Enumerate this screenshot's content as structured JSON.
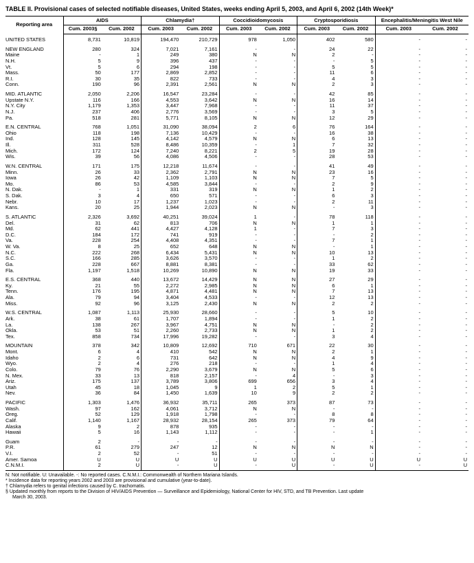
{
  "title": "TABLE II. Provisional cases of selected notifiable diseases, United States, weeks ending April 5, 2003, and April 6, 2002 (14th Week)*",
  "header": {
    "area": "Reporting area",
    "groups": [
      "AIDS",
      "Chlamydia†",
      "Coccidioidomycosis",
      "Cryptosporidiosis",
      "Encephalitis/Meningitis West Nile"
    ],
    "sub": [
      "Cum. 2003§",
      "Cum. 2002",
      "Cum. 2003",
      "Cum. 2002",
      "Cum. 2003",
      "Cum. 2002",
      "Cum. 2003",
      "Cum. 2002",
      "Cum. 2003",
      "Cum. 2002"
    ]
  },
  "rows": [
    {
      "g": 1,
      "a": "UNITED STATES",
      "v": [
        "8,731",
        "10,819",
        "194,470",
        "210,729",
        "978",
        "1,050",
        "402",
        "580",
        "-",
        "-"
      ]
    },
    {
      "g": 1,
      "a": "NEW ENGLAND",
      "v": [
        "280",
        "324",
        "7,021",
        "7,161",
        "-",
        "-",
        "24",
        "22",
        "-",
        "-"
      ]
    },
    {
      "a": "Maine",
      "v": [
        "-",
        "1",
        "249",
        "380",
        "N",
        "N",
        "2",
        "-",
        "-",
        "-"
      ]
    },
    {
      "a": "N.H.",
      "v": [
        "5",
        "9",
        "396",
        "437",
        "-",
        "-",
        "-",
        "5",
        "-",
        "-"
      ]
    },
    {
      "a": "Vt.",
      "v": [
        "5",
        "6",
        "294",
        "198",
        "-",
        "-",
        "5",
        "5",
        "-",
        "-"
      ]
    },
    {
      "a": "Mass.",
      "v": [
        "50",
        "177",
        "2,869",
        "2,852",
        "-",
        "-",
        "11",
        "6",
        "-",
        "-"
      ]
    },
    {
      "a": "R.I.",
      "v": [
        "30",
        "35",
        "822",
        "733",
        "-",
        "-",
        "4",
        "3",
        "-",
        "-"
      ]
    },
    {
      "a": "Conn.",
      "v": [
        "190",
        "96",
        "2,391",
        "2,561",
        "N",
        "N",
        "2",
        "3",
        "-",
        "-"
      ]
    },
    {
      "g": 1,
      "a": "MID. ATLANTIC",
      "v": [
        "2,050",
        "2,206",
        "16,547",
        "23,284",
        "-",
        "-",
        "42",
        "85",
        "-",
        "-"
      ]
    },
    {
      "a": "Upstate N.Y.",
      "v": [
        "116",
        "166",
        "4,553",
        "3,642",
        "N",
        "N",
        "16",
        "14",
        "-",
        "-"
      ]
    },
    {
      "a": "N.Y. City",
      "v": [
        "1,179",
        "1,353",
        "3,447",
        "7,968",
        "-",
        "-",
        "11",
        "37",
        "-",
        "-"
      ]
    },
    {
      "a": "N.J.",
      "v": [
        "237",
        "406",
        "2,776",
        "3,569",
        "-",
        "-",
        "3",
        "5",
        "-",
        "-"
      ]
    },
    {
      "a": "Pa.",
      "v": [
        "518",
        "281",
        "5,771",
        "8,105",
        "N",
        "N",
        "12",
        "29",
        "-",
        "-"
      ]
    },
    {
      "g": 1,
      "a": "E.N. CENTRAL",
      "v": [
        "768",
        "1,051",
        "31,090",
        "38,094",
        "2",
        "6",
        "76",
        "164",
        "-",
        "-"
      ]
    },
    {
      "a": "Ohio",
      "v": [
        "118",
        "198",
        "7,136",
        "10,429",
        "-",
        "-",
        "16",
        "38",
        "-",
        "-"
      ]
    },
    {
      "a": "Ind.",
      "v": [
        "128",
        "145",
        "4,142",
        "4,579",
        "N",
        "N",
        "6",
        "13",
        "-",
        "-"
      ]
    },
    {
      "a": "Ill.",
      "v": [
        "311",
        "528",
        "8,486",
        "10,359",
        "-",
        "1",
        "7",
        "32",
        "-",
        "-"
      ]
    },
    {
      "a": "Mich.",
      "v": [
        "172",
        "124",
        "7,240",
        "8,221",
        "2",
        "5",
        "19",
        "28",
        "-",
        "-"
      ]
    },
    {
      "a": "Wis.",
      "v": [
        "39",
        "56",
        "4,086",
        "4,506",
        "-",
        "-",
        "28",
        "53",
        "-",
        "-"
      ]
    },
    {
      "g": 1,
      "a": "W.N. CENTRAL",
      "v": [
        "171",
        "175",
        "12,218",
        "11,674",
        "-",
        "-",
        "41",
        "49",
        "-",
        "-"
      ]
    },
    {
      "a": "Minn.",
      "v": [
        "26",
        "33",
        "2,362",
        "2,791",
        "N",
        "N",
        "23",
        "16",
        "-",
        "-"
      ]
    },
    {
      "a": "Iowa",
      "v": [
        "26",
        "42",
        "1,109",
        "1,103",
        "N",
        "N",
        "7",
        "5",
        "-",
        "-"
      ]
    },
    {
      "a": "Mo.",
      "v": [
        "86",
        "53",
        "4,585",
        "3,844",
        "-",
        "-",
        "2",
        "9",
        "-",
        "-"
      ]
    },
    {
      "a": "N. Dak.",
      "v": [
        "-",
        "1",
        "331",
        "319",
        "N",
        "N",
        "1",
        "2",
        "-",
        "-"
      ]
    },
    {
      "a": "S. Dak.",
      "v": [
        "3",
        "4",
        "650",
        "571",
        "-",
        "-",
        "6",
        "3",
        "-",
        "-"
      ]
    },
    {
      "a": "Nebr.",
      "v": [
        "10",
        "17",
        "1,237",
        "1,023",
        "-",
        "-",
        "2",
        "11",
        "-",
        "-"
      ]
    },
    {
      "a": "Kans.",
      "v": [
        "20",
        "25",
        "1,944",
        "2,023",
        "N",
        "N",
        "-",
        "3",
        "-",
        "-"
      ]
    },
    {
      "g": 1,
      "a": "S. ATLANTIC",
      "v": [
        "2,326",
        "3,692",
        "40,251",
        "39,024",
        "1",
        "-",
        "78",
        "118",
        "-",
        "-"
      ]
    },
    {
      "a": "Del.",
      "v": [
        "31",
        "62",
        "813",
        "706",
        "N",
        "N",
        "1",
        "1",
        "-",
        "-"
      ]
    },
    {
      "a": "Md.",
      "v": [
        "62",
        "441",
        "4,427",
        "4,128",
        "1",
        "-",
        "7",
        "3",
        "-",
        "-"
      ]
    },
    {
      "a": "D.C.",
      "v": [
        "184",
        "172",
        "741",
        "919",
        "-",
        "-",
        "-",
        "2",
        "-",
        "-"
      ]
    },
    {
      "a": "Va.",
      "v": [
        "228",
        "254",
        "4,408",
        "4,351",
        "-",
        "-",
        "7",
        "1",
        "-",
        "-"
      ]
    },
    {
      "a": "W. Va.",
      "v": [
        "8",
        "25",
        "652",
        "648",
        "N",
        "N",
        "-",
        "1",
        "-",
        "-"
      ]
    },
    {
      "a": "N.C.",
      "v": [
        "222",
        "268",
        "6,434",
        "5,431",
        "N",
        "N",
        "10",
        "13",
        "-",
        "-"
      ]
    },
    {
      "a": "S.C.",
      "v": [
        "166",
        "285",
        "3,626",
        "3,570",
        "-",
        "-",
        "1",
        "2",
        "-",
        "-"
      ]
    },
    {
      "a": "Ga.",
      "v": [
        "228",
        "667",
        "8,881",
        "8,381",
        "-",
        "-",
        "33",
        "62",
        "-",
        "-"
      ]
    },
    {
      "a": "Fla.",
      "v": [
        "1,197",
        "1,518",
        "10,269",
        "10,890",
        "N",
        "N",
        "19",
        "33",
        "-",
        "-"
      ]
    },
    {
      "g": 1,
      "a": "E.S. CENTRAL",
      "v": [
        "368",
        "440",
        "13,672",
        "14,429",
        "N",
        "N",
        "27",
        "29",
        "-",
        "-"
      ]
    },
    {
      "a": "Ky.",
      "v": [
        "21",
        "55",
        "2,272",
        "2,985",
        "N",
        "N",
        "6",
        "1",
        "-",
        "-"
      ]
    },
    {
      "a": "Tenn.",
      "v": [
        "176",
        "195",
        "4,871",
        "4,481",
        "N",
        "N",
        "7",
        "13",
        "-",
        "-"
      ]
    },
    {
      "a": "Ala.",
      "v": [
        "79",
        "94",
        "3,404",
        "4,533",
        "-",
        "-",
        "12",
        "13",
        "-",
        "-"
      ]
    },
    {
      "a": "Miss.",
      "v": [
        "92",
        "96",
        "3,125",
        "2,430",
        "N",
        "N",
        "2",
        "2",
        "-",
        "-"
      ]
    },
    {
      "g": 1,
      "a": "W.S. CENTRAL",
      "v": [
        "1,087",
        "1,113",
        "25,930",
        "28,660",
        "-",
        "-",
        "5",
        "10",
        "-",
        "-"
      ]
    },
    {
      "a": "Ark.",
      "v": [
        "38",
        "61",
        "1,707",
        "1,894",
        "-",
        "-",
        "1",
        "2",
        "-",
        "-"
      ]
    },
    {
      "a": "La.",
      "v": [
        "138",
        "267",
        "3,967",
        "4,751",
        "N",
        "N",
        "-",
        "2",
        "-",
        "-"
      ]
    },
    {
      "a": "Okla.",
      "v": [
        "53",
        "51",
        "2,260",
        "2,733",
        "N",
        "N",
        "1",
        "2",
        "-",
        "-"
      ]
    },
    {
      "a": "Tex.",
      "v": [
        "858",
        "734",
        "17,996",
        "19,282",
        "-",
        "-",
        "3",
        "4",
        "-",
        "-"
      ]
    },
    {
      "g": 1,
      "a": "MOUNTAIN",
      "v": [
        "378",
        "342",
        "10,809",
        "12,692",
        "710",
        "671",
        "22",
        "30",
        "-",
        "-"
      ]
    },
    {
      "a": "Mont.",
      "v": [
        "6",
        "4",
        "410",
        "542",
        "N",
        "N",
        "2",
        "1",
        "-",
        "-"
      ]
    },
    {
      "a": "Idaho",
      "v": [
        "2",
        "6",
        "731",
        "642",
        "N",
        "N",
        "4",
        "9",
        "-",
        "-"
      ]
    },
    {
      "a": "Wyo.",
      "v": [
        "2",
        "4",
        "276",
        "218",
        "-",
        "-",
        "1",
        "4",
        "-",
        "-"
      ]
    },
    {
      "a": "Colo.",
      "v": [
        "79",
        "76",
        "2,290",
        "3,679",
        "N",
        "N",
        "5",
        "6",
        "-",
        "-"
      ]
    },
    {
      "a": "N. Mex.",
      "v": [
        "33",
        "13",
        "818",
        "2,157",
        "-",
        "4",
        "-",
        "3",
        "-",
        "-"
      ]
    },
    {
      "a": "Ariz.",
      "v": [
        "175",
        "137",
        "3,789",
        "3,806",
        "699",
        "656",
        "3",
        "4",
        "-",
        "-"
      ]
    },
    {
      "a": "Utah",
      "v": [
        "45",
        "18",
        "1,045",
        "9",
        "1",
        "2",
        "5",
        "1",
        "-",
        "-"
      ]
    },
    {
      "a": "Nev.",
      "v": [
        "36",
        "84",
        "1,450",
        "1,639",
        "10",
        "9",
        "2",
        "2",
        "-",
        "-"
      ]
    },
    {
      "g": 1,
      "a": "PACIFIC",
      "v": [
        "1,303",
        "1,476",
        "36,932",
        "35,711",
        "265",
        "373",
        "87",
        "73",
        "-",
        "-"
      ]
    },
    {
      "a": "Wash.",
      "v": [
        "97",
        "162",
        "4,061",
        "3,712",
        "N",
        "N",
        "-",
        "-",
        "-",
        "-"
      ]
    },
    {
      "a": "Oreg.",
      "v": [
        "52",
        "129",
        "1,918",
        "1,798",
        "-",
        "-",
        "8",
        "8",
        "-",
        "-"
      ]
    },
    {
      "a": "Calif.",
      "v": [
        "1,140",
        "1,167",
        "28,932",
        "28,154",
        "265",
        "373",
        "79",
        "64",
        "-",
        "-"
      ]
    },
    {
      "a": "Alaska",
      "v": [
        "9",
        "2",
        "878",
        "935",
        "-",
        "-",
        "-",
        "-",
        "-",
        "-"
      ]
    },
    {
      "a": "Hawaii",
      "v": [
        "5",
        "16",
        "1,143",
        "1,112",
        "-",
        "-",
        "-",
        "1",
        "-",
        "-"
      ]
    },
    {
      "g": 1,
      "a": "Guam",
      "v": [
        "2",
        "-",
        "-",
        "-",
        "-",
        "-",
        "-",
        "-",
        "-",
        "-"
      ]
    },
    {
      "a": "P.R.",
      "v": [
        "61",
        "279",
        "247",
        "12",
        "N",
        "N",
        "N",
        "N",
        "-",
        "-"
      ]
    },
    {
      "a": "V.I.",
      "v": [
        "2",
        "52",
        "-",
        "51",
        "-",
        "-",
        "-",
        "-",
        "-",
        "-"
      ]
    },
    {
      "a": "Amer. Samoa",
      "v": [
        "U",
        "U",
        "U",
        "U",
        "U",
        "U",
        "U",
        "U",
        "U",
        "U"
      ]
    },
    {
      "a": "C.N.M.I.",
      "v": [
        "2",
        "U",
        "-",
        "U",
        "-",
        "U",
        "-",
        "U",
        "-",
        "U"
      ],
      "last": 1
    }
  ],
  "footnotes": {
    "line1": "N: Not notifiable.        U: Unavailable.            -: No reported cases.           C.N.M.I.: Commonwealth of Northern Mariana Islands.",
    "line2": "* Incidence data for reporting years 2002 and 2003 are provisional and cumulative (year-to-date).",
    "line3": "† Chlamydia refers to genital infections caused by C. trachomatis.",
    "line4a": "§ Updated monthly from reports to the Division of HIV/AIDS Prevention — Surveillance and Epidemiology, National Center for HIV, STD, and TB Prevention. Last update",
    "line4b": "March 30, 2003."
  }
}
